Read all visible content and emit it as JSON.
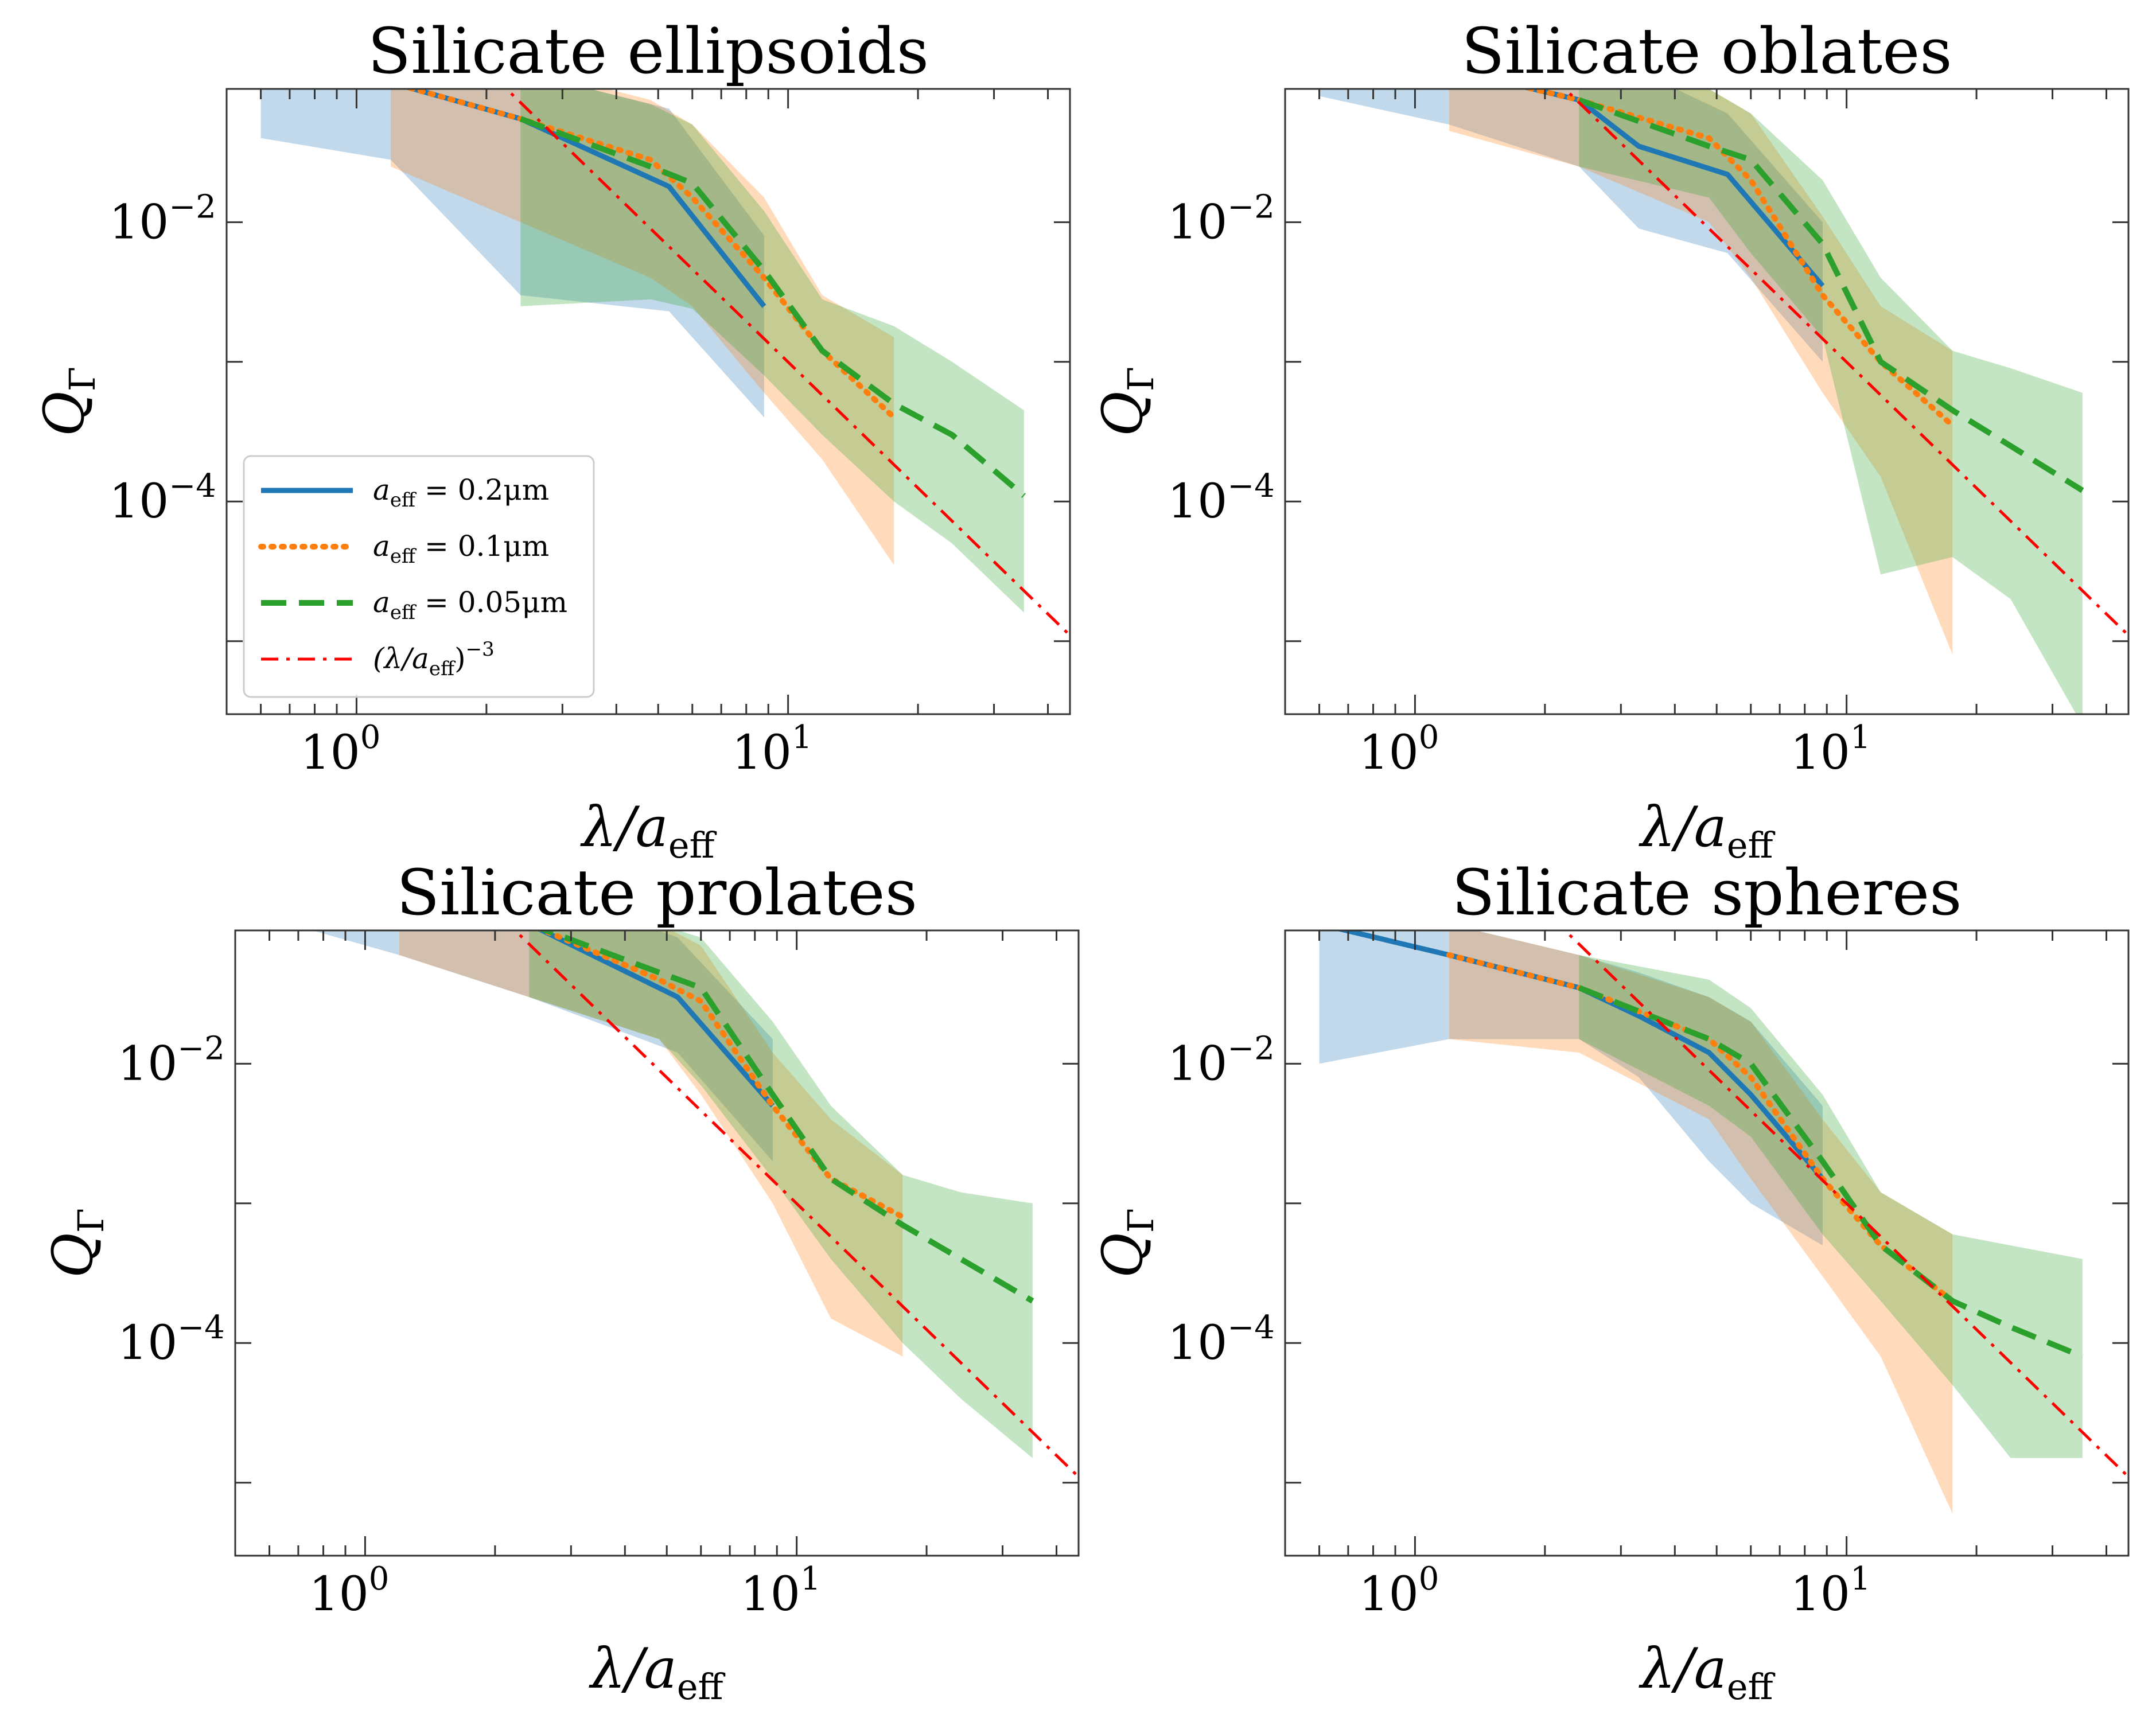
{
  "chart_data": {
    "type": "line",
    "x_scale": "log",
    "y_scale": "log",
    "xlim": [
      0.5,
      45
    ],
    "ylim": [
      3e-06,
      0.09
    ],
    "xlabel": "λ/a_eff",
    "xlabel_parts": {
      "main": "λ/a",
      "sub": "eff"
    },
    "ylabel": "Q_Γ",
    "ylabel_parts": {
      "main": "Q",
      "sub": "Γ"
    },
    "x_ticks": [
      {
        "value": 1,
        "base": "10",
        "exp": "0"
      },
      {
        "value": 10,
        "base": "10",
        "exp": "1"
      }
    ],
    "y_ticks": [
      {
        "value": 0.01,
        "base": "10",
        "exp": "−2"
      },
      {
        "value": 0.0001,
        "base": "10",
        "exp": "−4"
      }
    ],
    "series_meta": [
      {
        "key": "a02",
        "name": "a_eff = 0.2μm",
        "color": "#1f77b4",
        "dash": "solid"
      },
      {
        "key": "a01",
        "name": "a_eff = 0.1μm",
        "color": "#ff7f0e",
        "dash": "dotted"
      },
      {
        "key": "a005",
        "name": "a_eff = 0.05μm",
        "color": "#2ca02c",
        "dash": "dashed"
      },
      {
        "key": "ref",
        "name": "(λ/a_eff)^−3",
        "color": "#ff0000",
        "dash": "dashdot"
      }
    ],
    "panels": [
      {
        "title": "Silicate ellipsoids",
        "series": {
          "a02": {
            "x": [
              0.6,
              1.2,
              2.4,
              5.3,
              8.8
            ],
            "y": [
              0.15,
              0.1,
              0.055,
              0.018,
              0.0025
            ],
            "upper": [
              0.32,
              0.2,
              0.12,
              0.065,
              0.008
            ],
            "lower": [
              0.04,
              0.028,
              0.003,
              0.0023,
              0.0004
            ]
          },
          "a01": {
            "x": [
              1.2,
              2.4,
              4.8,
              6.0,
              8.8,
              12.0,
              17.6
            ],
            "y": [
              0.1,
              0.055,
              0.028,
              0.015,
              0.004,
              0.0012,
              0.0004
            ],
            "upper": [
              0.2,
              0.13,
              0.075,
              0.05,
              0.015,
              0.003,
              0.0015
            ],
            "lower": [
              0.025,
              0.01,
              0.004,
              0.0025,
              0.0006,
              0.0002,
              3.5e-05
            ]
          },
          "a005": {
            "x": [
              2.4,
              4.8,
              6.0,
              8.8,
              12.0,
              17.6,
              24.0,
              35.2
            ],
            "y": [
              0.055,
              0.025,
              0.019,
              0.0045,
              0.0012,
              0.0005,
              0.0003,
              0.00011
            ],
            "upper": [
              0.12,
              0.07,
              0.05,
              0.012,
              0.0028,
              0.0018,
              0.001,
              0.00045
            ],
            "lower": [
              0.0025,
              0.0028,
              0.0024,
              0.0008,
              0.0003,
              0.0001,
              5e-05,
              1.6e-05
            ]
          },
          "ref": {
            "x": [
              1.8,
              45
            ],
            "y": [
              0.17,
              1.1e-05
            ]
          }
        }
      },
      {
        "title": "Silicate oblates",
        "series": {
          "a02": {
            "x": [
              0.6,
              1.2,
              2.4,
              3.3,
              5.3,
              8.8
            ],
            "y": [
              0.19,
              0.125,
              0.075,
              0.035,
              0.022,
              0.0035
            ],
            "upper": [
              0.36,
              0.23,
              0.15,
              0.12,
              0.06,
              0.01
            ],
            "lower": [
              0.08,
              0.05,
              0.025,
              0.009,
              0.006,
              0.001
            ]
          },
          "a01": {
            "x": [
              1.2,
              2.4,
              4.8,
              6.0,
              8.8,
              12.0,
              17.6
            ],
            "y": [
              0.125,
              0.075,
              0.04,
              0.02,
              0.003,
              0.001,
              0.00035
            ],
            "upper": [
              0.24,
              0.16,
              0.09,
              0.06,
              0.011,
              0.0025,
              0.0012
            ],
            "lower": [
              0.045,
              0.025,
              0.01,
              0.004,
              0.0006,
              0.00015,
              8e-06
            ]
          },
          "a005": {
            "x": [
              2.4,
              4.8,
              6.0,
              8.8,
              12.0,
              17.6,
              24.0,
              35.2
            ],
            "y": [
              0.075,
              0.035,
              0.028,
              0.007,
              0.001,
              0.00045,
              0.00025,
              0.00012
            ],
            "upper": [
              0.15,
              0.09,
              0.06,
              0.02,
              0.004,
              0.0012,
              0.0009,
              0.0006
            ],
            "lower": [
              0.025,
              0.015,
              0.006,
              0.0015,
              3e-05,
              4e-05,
              2e-05,
              2.5e-06
            ]
          },
          "ref": {
            "x": [
              1.8,
              45
            ],
            "y": [
              0.17,
              1.1e-05
            ]
          }
        }
      },
      {
        "title": "Silicate prolates",
        "series": {
          "a02": {
            "x": [
              0.6,
              1.2,
              2.4,
              5.3,
              8.8
            ],
            "y": [
              0.3,
              0.18,
              0.1,
              0.03,
              0.005
            ],
            "upper": [
              0.45,
              0.35,
              0.2,
              0.08,
              0.015
            ],
            "lower": [
              0.11,
              0.06,
              0.03,
              0.012,
              0.002
            ]
          },
          "a01": {
            "x": [
              1.2,
              2.4,
              4.8,
              6.0,
              8.8,
              12.0,
              17.6
            ],
            "y": [
              0.18,
              0.1,
              0.04,
              0.028,
              0.005,
              0.0015,
              0.0008
            ],
            "upper": [
              0.35,
              0.18,
              0.1,
              0.07,
              0.012,
              0.004,
              0.0016
            ],
            "lower": [
              0.06,
              0.03,
              0.015,
              0.006,
              0.001,
              0.00015,
              8e-05
            ]
          },
          "a005": {
            "x": [
              2.4,
              4.8,
              6.0,
              8.8,
              12.0,
              17.6,
              24.0,
              35.2
            ],
            "y": [
              0.1,
              0.045,
              0.035,
              0.006,
              0.0015,
              0.0007,
              0.0004,
              0.0002
            ],
            "upper": [
              0.2,
              0.1,
              0.08,
              0.02,
              0.005,
              0.0016,
              0.0012,
              0.001
            ],
            "lower": [
              0.03,
              0.015,
              0.007,
              0.0015,
              0.0004,
              0.0001,
              4e-05,
              1.5e-05
            ]
          },
          "ref": {
            "x": [
              1.8,
              45
            ],
            "y": [
              0.17,
              1.1e-05
            ]
          }
        }
      },
      {
        "title": "Silicate spheres",
        "series": {
          "a02": {
            "x": [
              0.6,
              1.2,
              2.4,
              3.3,
              4.8,
              6.0,
              8.8
            ],
            "y": [
              0.1,
              0.06,
              0.035,
              0.022,
              0.012,
              0.006,
              0.0015
            ],
            "upper": [
              0.16,
              0.1,
              0.06,
              0.045,
              0.03,
              0.02,
              0.005
            ],
            "lower": [
              0.01,
              0.015,
              0.015,
              0.008,
              0.002,
              0.001,
              0.0005
            ]
          },
          "a01": {
            "x": [
              1.2,
              2.4,
              4.8,
              6.0,
              8.8,
              12.0,
              17.6
            ],
            "y": [
              0.06,
              0.035,
              0.015,
              0.008,
              0.0015,
              0.0005,
              0.0002
            ],
            "upper": [
              0.1,
              0.06,
              0.03,
              0.02,
              0.004,
              0.0012,
              0.0006
            ],
            "lower": [
              0.015,
              0.012,
              0.004,
              0.0015,
              0.0003,
              8e-05,
              6e-06
            ]
          },
          "a005": {
            "x": [
              2.4,
              4.8,
              6.0,
              8.8,
              12.0,
              17.6,
              24.0,
              35.2
            ],
            "y": [
              0.035,
              0.015,
              0.01,
              0.002,
              0.0005,
              0.0002,
              0.00013,
              8e-05
            ],
            "upper": [
              0.06,
              0.04,
              0.025,
              0.006,
              0.0012,
              0.0006,
              0.0005,
              0.0004
            ],
            "lower": [
              0.015,
              0.005,
              0.003,
              0.0006,
              0.0002,
              5e-05,
              1.5e-05,
              1.5e-05
            ]
          },
          "ref": {
            "x": [
              1.8,
              45
            ],
            "y": [
              0.17,
              1.1e-05
            ]
          }
        }
      }
    ],
    "legend": {
      "location": "lower-left",
      "panel": 0,
      "entries": [
        {
          "pre": "a",
          "sub": "eff",
          "post": " = 0.2μm"
        },
        {
          "pre": "a",
          "sub": "eff",
          "post": " = 0.1μm"
        },
        {
          "pre": "a",
          "sub": "eff",
          "post": " = 0.05μm"
        },
        {
          "pre": "(λ/a",
          "sub": "eff",
          "post": ")",
          "sup": "−3"
        }
      ]
    }
  }
}
